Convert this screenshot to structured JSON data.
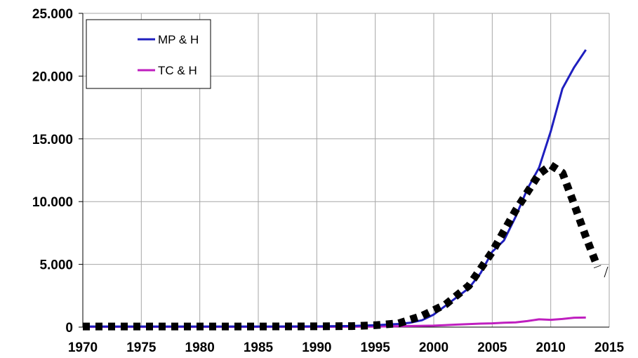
{
  "chart_data": {
    "type": "line",
    "title": "",
    "xlabel": "",
    "ylabel": "",
    "xlim": [
      1970,
      2015
    ],
    "ylim": [
      0,
      25000
    ],
    "x_ticks": [
      1970,
      1975,
      1980,
      1985,
      1990,
      1995,
      2000,
      2005,
      2010,
      2015
    ],
    "x_tick_labels": [
      "1970",
      "1975",
      "1980",
      "1985",
      "1990",
      "1995",
      "2000",
      "2005",
      "2010",
      "2015"
    ],
    "y_ticks": [
      0,
      5000,
      10000,
      15000,
      20000,
      25000
    ],
    "y_tick_labels": [
      "0",
      "5.000",
      "10.000",
      "15.000",
      "20.000",
      "25.000"
    ],
    "grid": true,
    "legend_position": "top-left",
    "series": [
      {
        "name": "MP & H",
        "color": "#1f1fbf",
        "x": [
          1970,
          1975,
          1980,
          1985,
          1990,
          1993,
          1995,
          1997,
          1998,
          1999,
          2000,
          2001,
          2002,
          2003,
          2004,
          2005,
          2006,
          2007,
          2008,
          2009,
          2010,
          2011,
          2012,
          2013
        ],
        "values": [
          50,
          50,
          50,
          50,
          60,
          90,
          150,
          250,
          350,
          550,
          1000,
          1700,
          2400,
          3100,
          4300,
          6000,
          6900,
          8800,
          11000,
          12700,
          15600,
          19000,
          20700,
          22100
        ]
      },
      {
        "name": "TC & H",
        "color": "#bf1fbf",
        "x": [
          1970,
          1975,
          1980,
          1985,
          1990,
          1995,
          2000,
          2002,
          2004,
          2005,
          2006,
          2007,
          2008,
          2009,
          2010,
          2011,
          2012,
          2013
        ],
        "values": [
          20,
          20,
          20,
          20,
          25,
          40,
          120,
          200,
          280,
          300,
          350,
          380,
          480,
          620,
          580,
          650,
          750,
          760
        ]
      },
      {
        "color": "#000000",
        "style": "dotted-trend",
        "x": [
          1970,
          1975,
          1980,
          1985,
          1990,
          1993,
          1995,
          1997,
          1999,
          2001,
          2003,
          2005,
          2007,
          2009,
          2010,
          2011,
          2012,
          2013,
          2014
        ],
        "values": [
          50,
          50,
          50,
          50,
          60,
          80,
          150,
          300,
          900,
          1800,
          3300,
          6000,
          9300,
          12200,
          12900,
          12300,
          9800,
          7200,
          4800
        ]
      }
    ]
  }
}
